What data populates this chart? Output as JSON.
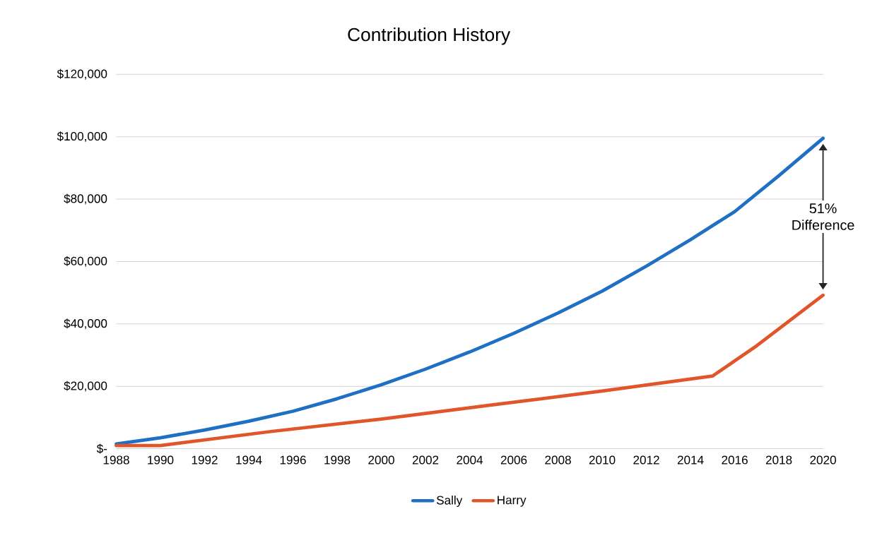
{
  "chart_data": {
    "type": "line",
    "title": "Contribution History",
    "series": [
      {
        "name": "Sally",
        "color": "#1f6fc5",
        "x": [
          1988,
          1990,
          1992,
          1994,
          1996,
          1998,
          2000,
          2002,
          2004,
          2006,
          2008,
          2010,
          2012,
          2014,
          2016,
          2018,
          2020
        ],
        "values": [
          1500,
          3500,
          6000,
          8800,
          12000,
          16000,
          20500,
          25500,
          31000,
          37000,
          43500,
          50500,
          58500,
          67000,
          76000,
          87500,
          99500
        ]
      },
      {
        "name": "Harry",
        "color": "#e0562a",
        "x": [
          1988,
          1990,
          1995,
          2000,
          2005,
          2010,
          2015,
          2017,
          2020
        ],
        "values": [
          1000,
          1000,
          5500,
          9500,
          14000,
          18500,
          23300,
          33000,
          49200
        ]
      }
    ],
    "xlim": [
      1988,
      2020
    ],
    "xticks": [
      1988,
      1990,
      1992,
      1994,
      1996,
      1998,
      2000,
      2002,
      2004,
      2006,
      2008,
      2010,
      2012,
      2014,
      2016,
      2018,
      2020
    ],
    "ylim": [
      0,
      120000
    ],
    "yticks": [
      {
        "value": 0,
        "label": "$-"
      },
      {
        "value": 20000,
        "label": "$20,000"
      },
      {
        "value": 40000,
        "label": "$40,000"
      },
      {
        "value": 60000,
        "label": "$60,000"
      },
      {
        "value": 80000,
        "label": "$80,000"
      },
      {
        "value": 100000,
        "label": "$100,000"
      },
      {
        "value": 120000,
        "label": "$120,000"
      }
    ],
    "grid": "y",
    "legend": "bottom",
    "marker": "none",
    "line_style": "solid",
    "annotations": [
      "51% Difference"
    ]
  }
}
